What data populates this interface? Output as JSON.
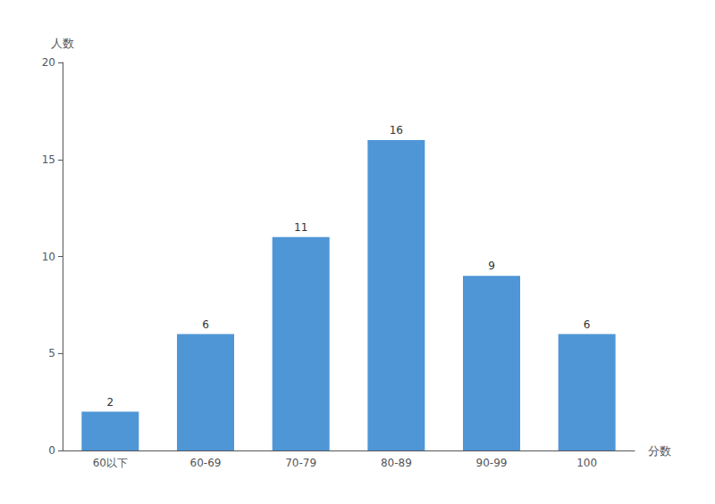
{
  "chart_data": {
    "type": "bar",
    "categories": [
      "60以下",
      "60-69",
      "70-79",
      "80-89",
      "90-99",
      "100"
    ],
    "values": [
      2,
      6,
      11,
      16,
      9,
      6
    ],
    "color": "#4f96d6",
    "xlabel": "分数",
    "ylabel": "人数",
    "ylim": [
      0,
      20
    ],
    "yticks": [
      0,
      5,
      10,
      15,
      20
    ],
    "grid": false,
    "data_labels": true
  }
}
